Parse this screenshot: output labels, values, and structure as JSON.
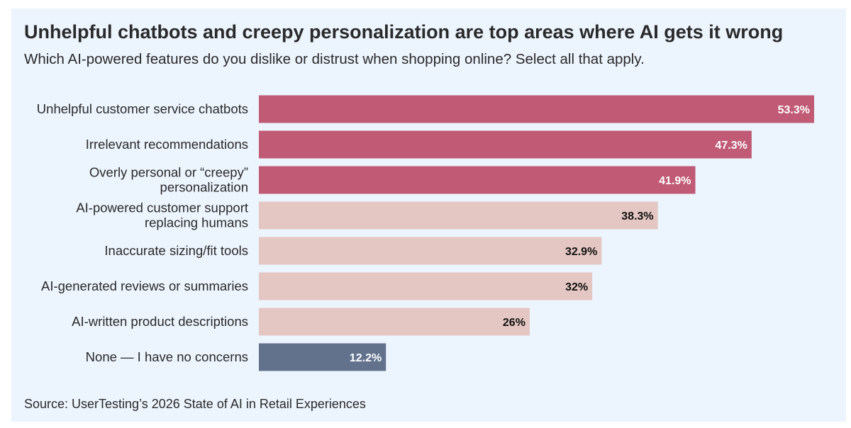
{
  "title": "Unhelpful chatbots and creepy personalization are top areas where AI gets it wrong",
  "subtitle": "Which AI-powered features do you dislike or distrust when shopping online? Select all that apply.",
  "source": "Source: UserTesting’s 2026 State of AI in Retail Experiences",
  "colors": {
    "background": "#ecf4fd",
    "highlight": "#c05a75",
    "muted": "#e4c7c2",
    "neutral": "#62728d",
    "label_light": "#ffffff",
    "label_dark": "#111111"
  },
  "chart_data": {
    "type": "bar",
    "orientation": "horizontal",
    "title": "Unhelpful chatbots and creepy personalization are top areas where AI gets it wrong",
    "xlabel": "",
    "ylabel": "",
    "xlim": [
      0,
      55
    ],
    "grid": false,
    "categories": [
      [
        "Unhelpful customer service chatbots"
      ],
      [
        "Irrelevant recommendations"
      ],
      [
        "Overly personal or “creepy”",
        "personalization"
      ],
      [
        "AI-powered customer support",
        "replacing humans"
      ],
      [
        "Inaccurate sizing/fit tools"
      ],
      [
        "AI-generated reviews or summaries"
      ],
      [
        "AI-written product descriptions"
      ],
      [
        "None — I have no concerns"
      ]
    ],
    "values": [
      53.3,
      47.3,
      41.9,
      38.3,
      32.9,
      32,
      26,
      12.2
    ],
    "value_labels": [
      "53.3%",
      "47.3%",
      "41.9%",
      "38.3%",
      "32.9%",
      "32%",
      "26%",
      "12.2%"
    ],
    "bar_color_groups": [
      "highlight",
      "highlight",
      "highlight",
      "muted",
      "muted",
      "muted",
      "muted",
      "neutral"
    ]
  }
}
